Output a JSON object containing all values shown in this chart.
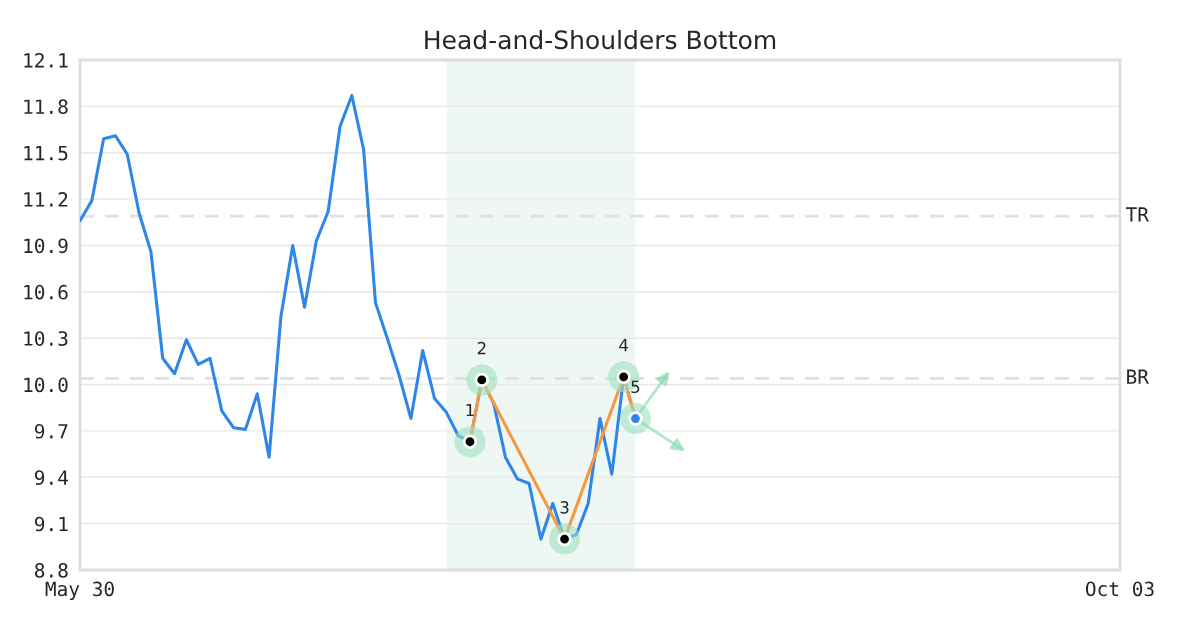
{
  "chart_data": {
    "type": "line",
    "title": "Head-and-Shoulders Bottom",
    "categories": [
      "May 30",
      null,
      null,
      null,
      null,
      null,
      null,
      null,
      null,
      null,
      null,
      null,
      null,
      null,
      null,
      null,
      null,
      null,
      null,
      null,
      null,
      null,
      null,
      null,
      null,
      null,
      null,
      null,
      null,
      null,
      null,
      null,
      null,
      null,
      null,
      null,
      null,
      null,
      null,
      null,
      null,
      null,
      null,
      null,
      null,
      null,
      null,
      null,
      null,
      null,
      null,
      null,
      null,
      null,
      null,
      null,
      null,
      null,
      null,
      null,
      null,
      null,
      null,
      null,
      null,
      null,
      null,
      null,
      null,
      null,
      null,
      null,
      null,
      null,
      null,
      null,
      null,
      null,
      null,
      null,
      null,
      null,
      null,
      null,
      null,
      null,
      null,
      null,
      "Oct 03"
    ],
    "ylim": [
      8.8,
      12.1
    ],
    "yticks": [
      8.8,
      9.1,
      9.4,
      9.7,
      {
        "value": 10.0,
        "label": "10.0"
      },
      10.3,
      10.6,
      10.9,
      11.2,
      11.5,
      11.8,
      12.1
    ],
    "grid": "y",
    "legend": false,
    "series": [
      {
        "color": "#2e86e8",
        "marker": "none",
        "values": [
          11.06,
          11.19,
          11.59,
          11.61,
          11.49,
          11.11,
          10.86,
          10.17,
          10.07,
          10.29,
          10.13,
          10.17,
          9.83,
          9.72,
          9.71,
          9.94,
          9.53,
          10.44,
          10.9,
          10.5,
          10.93,
          11.12,
          11.67,
          11.87,
          11.52,
          10.53,
          10.3,
          10.06,
          9.78,
          10.22,
          9.91,
          9.82,
          9.67,
          9.63,
          10.03,
          9.88,
          9.53,
          9.39,
          9.36,
          9.0,
          9.23,
          9.0,
          9.03,
          9.23,
          9.78,
          9.42,
          10.05,
          9.78,
          null,
          null,
          null,
          null,
          null,
          null,
          null,
          null,
          null,
          null,
          null,
          null,
          null,
          null,
          null,
          null,
          null,
          null,
          null,
          null,
          null,
          null,
          null,
          null,
          null,
          null,
          null,
          null,
          null,
          null,
          null,
          null,
          null,
          null,
          null,
          null,
          null,
          null,
          null,
          null,
          null
        ]
      },
      {
        "color": "#f5983e",
        "marker": "circle",
        "values": [
          null,
          null,
          null,
          null,
          null,
          null,
          null,
          null,
          null,
          null,
          null,
          null,
          null,
          null,
          null,
          null,
          null,
          null,
          null,
          null,
          null,
          null,
          null,
          null,
          null,
          null,
          null,
          null,
          null,
          null,
          null,
          null,
          null,
          9.63,
          10.03,
          null,
          null,
          null,
          null,
          null,
          null,
          9.0,
          null,
          null,
          null,
          null,
          10.05,
          9.78,
          null,
          null,
          null,
          null,
          null,
          null,
          null,
          null,
          null,
          null,
          null,
          null,
          null,
          null,
          null,
          null,
          null,
          null,
          null,
          null,
          null,
          null,
          null,
          null,
          null,
          null,
          null,
          null,
          null,
          null,
          null,
          null,
          null,
          null,
          null,
          null,
          null,
          null,
          null,
          null,
          null
        ],
        "colors": [
          null,
          null,
          null,
          null,
          null,
          null,
          null,
          null,
          null,
          null,
          null,
          null,
          null,
          null,
          null,
          null,
          null,
          null,
          null,
          null,
          null,
          null,
          null,
          null,
          null,
          null,
          null,
          null,
          null,
          null,
          null,
          null,
          null,
          "#000000",
          "#000000",
          null,
          null,
          null,
          null,
          null,
          null,
          "#000000",
          null,
          null,
          null,
          null,
          "#000000",
          "#2e86e8",
          null,
          null,
          null,
          null,
          null,
          null,
          null,
          null,
          null,
          null,
          null,
          null,
          null,
          null,
          null,
          null,
          null,
          null,
          null,
          null,
          null,
          null,
          null,
          null,
          null,
          null,
          null,
          null,
          null,
          null,
          null,
          null,
          null,
          null,
          null,
          null,
          null,
          null,
          null,
          null,
          null
        ]
      }
    ],
    "ref_lines": [
      {
        "axis": "y",
        "value": 11.09,
        "label": "TR",
        "color": "#e0e0e0",
        "line_style": "dashed"
      },
      {
        "axis": "y",
        "value": 10.04,
        "label": "BR",
        "color": "#e0e0e0",
        "line_style": "dashed"
      }
    ],
    "annotations": [
      {
        "text": "1",
        "y": 9.63
      },
      {
        "text": "2",
        "y": 10.03
      },
      {
        "text": "3",
        "y": 9.0
      },
      {
        "text": "4",
        "y": 10.05
      },
      {
        "text": "5",
        "y": 9.78
      }
    ]
  }
}
